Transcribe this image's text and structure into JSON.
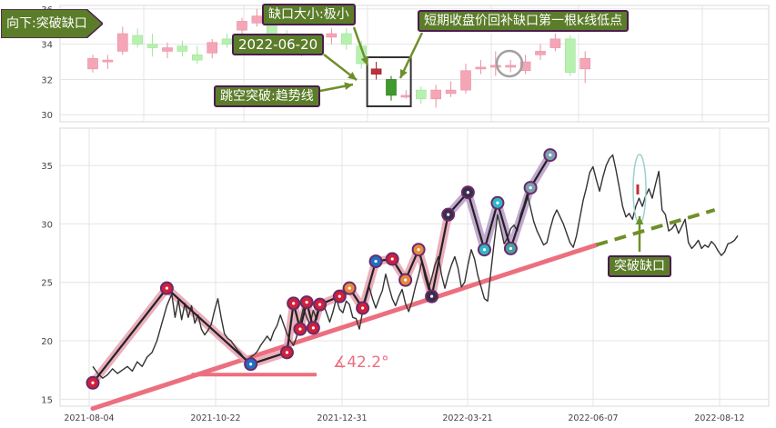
{
  "direction_badge": "向下:突破缺口",
  "annotations": {
    "gap_size": "缺口大小:极小",
    "date": "2022-06-20",
    "fill_target": "短期收盘价回补缺口第一根k线低点",
    "breakout_trendline": "跳空突破:趋势线",
    "breakout_gap": "突破缺口",
    "angle": "∡42.2°"
  },
  "colors": {
    "up_candle": "#f4a6b6",
    "down_candle": "#b8f0b0",
    "price_line": "#333333",
    "trend_support": "#ec6f7f",
    "trend_dashed": "#6f8f2a",
    "zigzag_pink": "#e8a0b0",
    "zigzag_purple": "#b89ac8",
    "annotation_bg": "#5b7d2a",
    "annotation_border": "#4a1c4e"
  },
  "chart_data": [
    {
      "type": "candlestick",
      "panel": "top",
      "yticks": [
        "30",
        "32",
        "34",
        "36"
      ],
      "ylim": [
        29.6,
        36.2
      ],
      "grid": true,
      "candles": [
        {
          "o": 32.6,
          "c": 33.2,
          "h": 33.4,
          "l": 32.4
        },
        {
          "o": 33.0,
          "c": 33.1,
          "h": 33.4,
          "l": 32.6
        },
        {
          "o": 33.6,
          "c": 34.6,
          "h": 35.0,
          "l": 33.4
        },
        {
          "o": 34.5,
          "c": 34.0,
          "h": 34.9,
          "l": 33.8
        },
        {
          "o": 34.0,
          "c": 33.8,
          "h": 34.6,
          "l": 33.3
        },
        {
          "o": 33.6,
          "c": 33.8,
          "h": 34.1,
          "l": 33.2
        },
        {
          "o": 33.9,
          "c": 33.6,
          "h": 34.2,
          "l": 33.3
        },
        {
          "o": 33.4,
          "c": 33.1,
          "h": 33.9,
          "l": 32.9
        },
        {
          "o": 33.5,
          "c": 34.1,
          "h": 34.3,
          "l": 33.2
        },
        {
          "o": 34.3,
          "c": 34.0,
          "h": 34.6,
          "l": 33.8
        },
        {
          "o": 34.8,
          "c": 35.3,
          "h": 35.5,
          "l": 34.5
        },
        {
          "o": 35.2,
          "c": 35.6,
          "h": 36.0,
          "l": 35.0
        },
        {
          "o": 35.4,
          "c": 34.5,
          "h": 35.6,
          "l": 34.2
        },
        {
          "o": 34.4,
          "c": 33.9,
          "h": 34.8,
          "l": 33.6
        },
        {
          "o": 33.8,
          "c": 33.6,
          "h": 34.2,
          "l": 33.3
        },
        {
          "o": 33.8,
          "c": 34.1,
          "h": 34.4,
          "l": 33.5
        },
        {
          "o": 34.4,
          "c": 34.6,
          "h": 34.9,
          "l": 34.0
        },
        {
          "o": 34.6,
          "c": 34.0,
          "h": 34.9,
          "l": 33.7
        },
        {
          "o": 33.9,
          "c": 32.9,
          "h": 34.2,
          "l": 32.6
        },
        {
          "o": 32.3,
          "c": 32.6,
          "h": 33.0,
          "l": 32.0
        },
        {
          "o": 32.0,
          "c": 31.1,
          "h": 32.2,
          "l": 30.8
        },
        {
          "o": 31.1,
          "c": 31.1,
          "h": 31.4,
          "l": 30.9
        },
        {
          "o": 31.4,
          "c": 30.9,
          "h": 31.6,
          "l": 30.6
        },
        {
          "o": 30.9,
          "c": 31.4,
          "h": 31.7,
          "l": 30.4
        },
        {
          "o": 31.2,
          "c": 31.4,
          "h": 31.9,
          "l": 31.0
        },
        {
          "o": 31.4,
          "c": 32.5,
          "h": 32.9,
          "l": 31.2
        },
        {
          "o": 32.7,
          "c": 32.7,
          "h": 33.1,
          "l": 32.3
        },
        {
          "o": 32.7,
          "c": 32.8,
          "h": 33.6,
          "l": 32.2
        },
        {
          "o": 32.8,
          "c": 32.8,
          "h": 33.1,
          "l": 32.4
        },
        {
          "o": 32.5,
          "c": 33.0,
          "h": 33.4,
          "l": 32.3
        },
        {
          "o": 33.4,
          "c": 33.6,
          "h": 34.0,
          "l": 33.1
        },
        {
          "o": 33.8,
          "c": 34.3,
          "h": 34.6,
          "l": 33.6
        },
        {
          "o": 34.3,
          "c": 32.4,
          "h": 34.5,
          "l": 32.2
        },
        {
          "o": 32.6,
          "c": 33.2,
          "h": 33.6,
          "l": 31.8
        }
      ]
    },
    {
      "type": "line",
      "panel": "bottom",
      "xticks": [
        "2021-08-04",
        "2021-10-22",
        "2021-12-31",
        "2022-03-21",
        "2022-06-07",
        "2022-08-12"
      ],
      "yticks": [
        "15",
        "20",
        "25",
        "30",
        "35"
      ],
      "ylim": [
        14.4,
        38.2
      ],
      "grid": true,
      "series": [
        {
          "values": [
            [
              0,
              17.8
            ],
            [
              3,
              17.2
            ],
            [
              6,
              16.8
            ],
            [
              9,
              17.1
            ],
            [
              12,
              17.6
            ],
            [
              15,
              17.2
            ],
            [
              18,
              17.5
            ],
            [
              21,
              17.8
            ],
            [
              24,
              17.4
            ],
            [
              27,
              18.2
            ],
            [
              30,
              17.8
            ],
            [
              33,
              18.6
            ],
            [
              36,
              19.0
            ],
            [
              39,
              20.0
            ],
            [
              42,
              21.5
            ],
            [
              45,
              23.0
            ],
            [
              48,
              24.0
            ],
            [
              50,
              22.0
            ],
            [
              52,
              23.5
            ],
            [
              54,
              21.8
            ],
            [
              56,
              23.2
            ],
            [
              58,
              22.0
            ],
            [
              60,
              23.0
            ],
            [
              62,
              21.5
            ],
            [
              64,
              22.2
            ],
            [
              66,
              21.0
            ],
            [
              68,
              20.5
            ],
            [
              70,
              20.9
            ],
            [
              72,
              21.4
            ],
            [
              74,
              22.6
            ],
            [
              76,
              23.6
            ],
            [
              78,
              22.0
            ],
            [
              80,
              20.6
            ],
            [
              82,
              20.2
            ],
            [
              84,
              20.0
            ],
            [
              86,
              19.6
            ],
            [
              88,
              19.2
            ],
            [
              90,
              18.9
            ],
            [
              92,
              18.5
            ],
            [
              94,
              18.3
            ],
            [
              96,
              18.6
            ],
            [
              98,
              18.8
            ],
            [
              100,
              19.1
            ],
            [
              102,
              19.6
            ],
            [
              104,
              20.0
            ],
            [
              106,
              20.4
            ],
            [
              108,
              20.0
            ],
            [
              110,
              20.8
            ],
            [
              112,
              21.3
            ],
            [
              114,
              22.2
            ],
            [
              116,
              21.4
            ],
            [
              118,
              20.6
            ],
            [
              120,
              20.0
            ],
            [
              122,
              19.6
            ],
            [
              124,
              20.4
            ],
            [
              126,
              21.6
            ],
            [
              128,
              22.8
            ],
            [
              130,
              22.0
            ],
            [
              132,
              21.4
            ],
            [
              134,
              22.6
            ],
            [
              136,
              21.8
            ],
            [
              138,
              22.9
            ],
            [
              140,
              23.2
            ],
            [
              142,
              22.4
            ],
            [
              144,
              21.6
            ],
            [
              146,
              22.5
            ],
            [
              148,
              23.6
            ],
            [
              150,
              22.7
            ],
            [
              152,
              22.4
            ],
            [
              154,
              23.4
            ],
            [
              156,
              23.1
            ],
            [
              158,
              22.0
            ],
            [
              160,
              21.9
            ],
            [
              162,
              21.0
            ],
            [
              164,
              22.5
            ],
            [
              166,
              23.6
            ],
            [
              168,
              24.6
            ],
            [
              170,
              23.6
            ],
            [
              172,
              22.8
            ],
            [
              174,
              23.6
            ],
            [
              176,
              24.3
            ],
            [
              178,
              25.7
            ],
            [
              180,
              24.6
            ],
            [
              182,
              23.6
            ],
            [
              184,
              23.0
            ],
            [
              186,
              23.8
            ],
            [
              188,
              24.4
            ],
            [
              190,
              23.2
            ],
            [
              192,
              22.5
            ],
            [
              194,
              23.4
            ],
            [
              196,
              24.6
            ],
            [
              198,
              25.6
            ],
            [
              200,
              26.8
            ],
            [
              202,
              25.4
            ],
            [
              204,
              24.4
            ],
            [
              206,
              25.4
            ],
            [
              208,
              26.5
            ],
            [
              210,
              27.2
            ],
            [
              212,
              25.6
            ],
            [
              214,
              24.5
            ],
            [
              216,
              25.6
            ],
            [
              218,
              26.5
            ],
            [
              220,
              27.2
            ],
            [
              222,
              26.2
            ],
            [
              224,
              24.6
            ],
            [
              226,
              25.0
            ],
            [
              228,
              26.5
            ],
            [
              230,
              27.8
            ],
            [
              232,
              27.0
            ],
            [
              234,
              25.6
            ],
            [
              236,
              24.6
            ],
            [
              238,
              23.6
            ],
            [
              240,
              23.4
            ],
            [
              242,
              26.0
            ],
            [
              244,
              28.5
            ],
            [
              246,
              30.8
            ],
            [
              248,
              29.6
            ],
            [
              250,
              28.3
            ],
            [
              252,
              28.8
            ],
            [
              254,
              29.6
            ],
            [
              256,
              29.9
            ],
            [
              258,
              29.4
            ],
            [
              260,
              30.8
            ],
            [
              262,
              31.6
            ],
            [
              264,
              32.6
            ],
            [
              266,
              31.4
            ],
            [
              268,
              30.2
            ],
            [
              270,
              29.4
            ],
            [
              272,
              28.8
            ],
            [
              274,
              28.2
            ],
            [
              276,
              28.4
            ],
            [
              278,
              29.6
            ],
            [
              280,
              30.6
            ],
            [
              282,
              31.2
            ],
            [
              284,
              30.6
            ],
            [
              286,
              30.0
            ],
            [
              288,
              29.2
            ],
            [
              290,
              28.4
            ],
            [
              292,
              28.0
            ],
            [
              294,
              29.0
            ],
            [
              296,
              30.5
            ],
            [
              298,
              32.0
            ],
            [
              300,
              33.1
            ],
            [
              302,
              34.4
            ],
            [
              304,
              34.9
            ],
            [
              306,
              33.8
            ],
            [
              308,
              32.8
            ],
            [
              310,
              34.0
            ],
            [
              312,
              35.0
            ],
            [
              314,
              35.6
            ],
            [
              316,
              35.9
            ],
            [
              318,
              34.6
            ],
            [
              320,
              33.1
            ],
            [
              322,
              31.5
            ],
            [
              324,
              30.6
            ],
            [
              326,
              30.9
            ],
            [
              328,
              30.4
            ],
            [
              330,
              31.5
            ],
            [
              332,
              32.2
            ],
            [
              334,
              31.5
            ],
            [
              336,
              32.4
            ],
            [
              338,
              33.0
            ],
            [
              340,
              32.2
            ],
            [
              342,
              33.4
            ],
            [
              344,
              34.5
            ],
            [
              346,
              31.2
            ],
            [
              348,
              30.8
            ],
            [
              350,
              29.4
            ],
            [
              352,
              29.6
            ],
            [
              354,
              30.0
            ],
            [
              356,
              29.2
            ],
            [
              358,
              29.8
            ],
            [
              360,
              30.4
            ],
            [
              362,
              28.4
            ],
            [
              364,
              27.9
            ],
            [
              366,
              28.2
            ],
            [
              368,
              28.6
            ],
            [
              370,
              27.9
            ],
            [
              372,
              28.2
            ],
            [
              374,
              28.0
            ],
            [
              376,
              28.5
            ],
            [
              378,
              28.2
            ],
            [
              380,
              27.7
            ],
            [
              382,
              27.3
            ],
            [
              384,
              27.6
            ],
            [
              386,
              28.3
            ],
            [
              388,
              28.4
            ],
            [
              390,
              28.6
            ],
            [
              392,
              29.0
            ]
          ]
        }
      ],
      "zigzag": [
        [
          0,
          16.4
        ],
        [
          45,
          24.5
        ],
        [
          96,
          18.0
        ],
        [
          118,
          19.0
        ],
        [
          122,
          23.2
        ],
        [
          126,
          21.0
        ],
        [
          130,
          23.3
        ],
        [
          134,
          21.1
        ],
        [
          138,
          23.1
        ],
        [
          150,
          23.8
        ],
        [
          156,
          24.5
        ],
        [
          164,
          22.8
        ],
        [
          172,
          26.8
        ],
        [
          182,
          27.0
        ],
        [
          190,
          25.2
        ],
        [
          198,
          27.8
        ],
        [
          206,
          23.8
        ],
        [
          216,
          30.8
        ],
        [
          228,
          32.7
        ],
        [
          238,
          27.8
        ],
        [
          246,
          31.8
        ],
        [
          254,
          27.9
        ],
        [
          266,
          33.1
        ],
        [
          278,
          35.9
        ]
      ],
      "trendline_support": {
        "from": [
          0,
          14.2
        ],
        "to": [
          306,
          28.2
        ]
      },
      "trendline_projection": {
        "from": [
          306,
          28.2
        ],
        "to": [
          378,
          31.2
        ]
      },
      "angle_marker": {
        "x": [
          60,
          136
        ],
        "y": 17.1
      }
    }
  ]
}
